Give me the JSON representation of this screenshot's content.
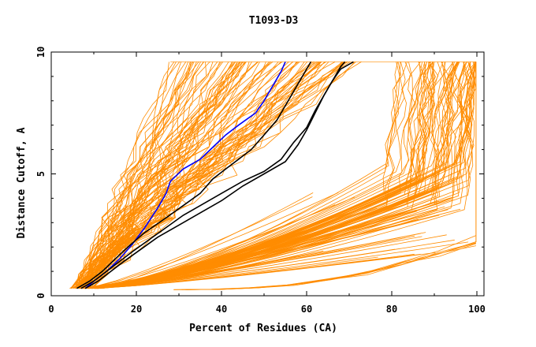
{
  "chart_data": {
    "type": "line",
    "title": "T1093-D3",
    "xlabel": "Percent of Residues (CA)",
    "ylabel": "Distance Cutoff, A",
    "xlim": [
      0,
      100
    ],
    "ylim": [
      0,
      10
    ],
    "x_ticks": [
      "0",
      "20",
      "40",
      "60",
      "80",
      "100"
    ],
    "y_ticks": [
      "0",
      "5",
      "10"
    ],
    "grid": false,
    "colors": {
      "background_models": "#ff8c00",
      "highlight_black": "#000000",
      "highlight_blue": "#0000ff"
    },
    "highlighted_series": [
      {
        "color": "#0000ff",
        "points": [
          [
            8,
            0.3
          ],
          [
            10,
            0.6
          ],
          [
            13,
            1.0
          ],
          [
            16,
            1.5
          ],
          [
            19,
            2.1
          ],
          [
            22,
            2.8
          ],
          [
            25,
            3.6
          ],
          [
            27,
            4.2
          ],
          [
            28,
            4.7
          ],
          [
            31,
            5.2
          ],
          [
            35,
            5.6
          ],
          [
            38,
            6.1
          ],
          [
            41,
            6.6
          ],
          [
            44,
            7.0
          ],
          [
            48,
            7.5
          ],
          [
            50,
            8.0
          ],
          [
            52,
            8.6
          ],
          [
            54,
            9.2
          ],
          [
            55,
            9.6
          ]
        ]
      },
      {
        "color": "#000000",
        "points": [
          [
            6,
            0.3
          ],
          [
            9,
            0.6
          ],
          [
            12,
            1.0
          ],
          [
            15,
            1.5
          ],
          [
            18,
            2.0
          ],
          [
            22,
            2.6
          ],
          [
            27,
            3.2
          ],
          [
            31,
            3.7
          ],
          [
            35,
            4.2
          ],
          [
            38,
            4.8
          ],
          [
            41,
            5.2
          ],
          [
            44,
            5.6
          ],
          [
            47,
            6.0
          ],
          [
            50,
            6.6
          ],
          [
            53,
            7.2
          ],
          [
            55,
            7.8
          ],
          [
            57,
            8.4
          ],
          [
            59,
            9.0
          ],
          [
            61,
            9.6
          ]
        ]
      },
      {
        "color": "#000000",
        "points": [
          [
            7,
            0.3
          ],
          [
            10,
            0.6
          ],
          [
            13,
            1.0
          ],
          [
            16,
            1.4
          ],
          [
            19,
            1.8
          ],
          [
            23,
            2.3
          ],
          [
            27,
            2.8
          ],
          [
            31,
            3.3
          ],
          [
            35,
            3.7
          ],
          [
            40,
            4.2
          ],
          [
            45,
            4.7
          ],
          [
            50,
            5.1
          ],
          [
            54,
            5.6
          ],
          [
            57,
            6.3
          ],
          [
            60,
            6.9
          ],
          [
            62,
            7.6
          ],
          [
            64,
            8.2
          ],
          [
            66,
            8.8
          ],
          [
            68,
            9.4
          ],
          [
            69,
            9.6
          ]
        ]
      },
      {
        "color": "#000000",
        "points": [
          [
            8,
            0.3
          ],
          [
            11,
            0.6
          ],
          [
            14,
            1.0
          ],
          [
            17,
            1.4
          ],
          [
            21,
            1.9
          ],
          [
            25,
            2.4
          ],
          [
            30,
            2.9
          ],
          [
            35,
            3.4
          ],
          [
            40,
            3.9
          ],
          [
            45,
            4.5
          ],
          [
            50,
            5.0
          ],
          [
            55,
            5.5
          ],
          [
            58,
            6.2
          ],
          [
            60,
            6.8
          ],
          [
            62,
            7.5
          ],
          [
            64,
            8.2
          ],
          [
            66,
            8.8
          ],
          [
            68,
            9.3
          ],
          [
            71,
            9.6
          ]
        ]
      }
    ]
  }
}
